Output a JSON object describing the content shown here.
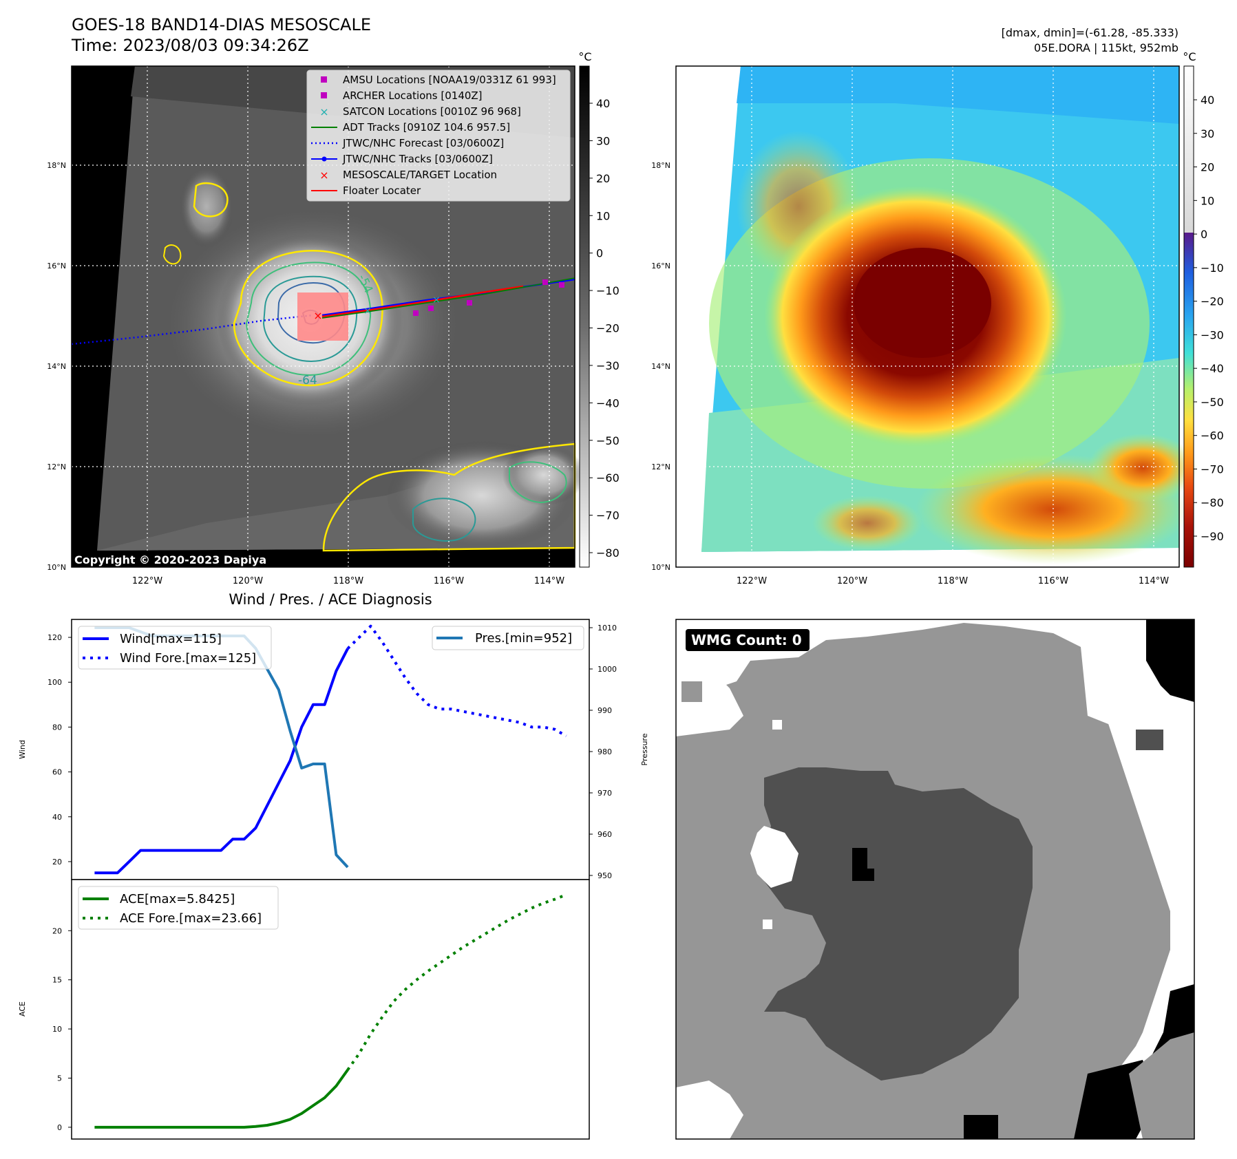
{
  "header": {
    "title": "GOES-18 BAND14-DIAS MESOSCALE",
    "time": "Time: 2023/08/03 09:34:26Z",
    "dminmax": "[dmax, dmin]=(-61.28, -85.333)",
    "storm": "05E.DORA | 115kt, 952mb"
  },
  "copyright": "Copyright © 2020-2023 Dapiya",
  "map": {
    "lat_labels": [
      "18°N",
      "16°N",
      "14°N",
      "12°N",
      "10°N"
    ],
    "lon_labels": [
      "122°W",
      "120°W",
      "118°W",
      "116°W",
      "114°W"
    ],
    "colorbar_unit": "°C"
  },
  "colorbar_gray": {
    "ticks": [
      "40",
      "30",
      "20",
      "10",
      "0",
      "−10",
      "−20",
      "−30",
      "−40",
      "−50",
      "−60",
      "−70",
      "−80"
    ]
  },
  "colorbar_color": {
    "ticks": [
      "40",
      "30",
      "20",
      "10",
      "0",
      "−10",
      "−20",
      "−30",
      "−40",
      "−50",
      "−60",
      "−70",
      "−80",
      "−90"
    ]
  },
  "legend_map": {
    "items": [
      {
        "label": "AMSU Locations [NOAA19/0331Z 61 993]",
        "color": "#c000c0",
        "marker": "square"
      },
      {
        "label": "ARCHER Locations [0140Z]",
        "color": "#c000c0",
        "marker": "square"
      },
      {
        "label": "SATCON Locations [0010Z 96 968]",
        "color": "#20b0b0",
        "marker": "x"
      },
      {
        "label": "ADT Tracks [0910Z 104.6 957.5]",
        "color": "#008000",
        "marker": "line"
      },
      {
        "label": "JTWC/NHC Forecast [03/0600Z]",
        "color": "#0000ff",
        "marker": "dotted"
      },
      {
        "label": "JTWC/NHC Tracks [03/0600Z]",
        "color": "#0000ff",
        "marker": "line-dot"
      },
      {
        "label": "MESOSCALE/TARGET Location",
        "color": "#ff0000",
        "marker": "x"
      },
      {
        "label": "Floater Locater",
        "color": "#ff0000",
        "marker": "line"
      }
    ]
  },
  "contour_labels": [
    "-54",
    "-64"
  ],
  "wmg_label": "WMG Count: 0",
  "diag_title": "Wind / Pres. / ACE Diagnosis",
  "chart_data": [
    {
      "type": "line",
      "ylabel": "Wind",
      "ylabel_right": "Pressure",
      "ylim": [
        12,
        128
      ],
      "ylim_right": [
        949,
        1012
      ],
      "xlim": [
        -1,
        44
      ],
      "yticks": [
        20,
        40,
        60,
        80,
        100,
        120
      ],
      "yticks_right": [
        950,
        960,
        970,
        980,
        990,
        1000,
        1010
      ],
      "legend_left": [
        "Wind[max=115]",
        "Wind Fore.[max=125]"
      ],
      "legend_right": [
        "Pres.[min=952]"
      ],
      "series": [
        {
          "name": "Wind[max=115]",
          "color": "#0000ff",
          "style": "solid",
          "axis": "left",
          "x": [
            1,
            2,
            3,
            4,
            5,
            6,
            7,
            8,
            9,
            10,
            11,
            12,
            13,
            14,
            15,
            16,
            17,
            18,
            19,
            20,
            21,
            22,
            23
          ],
          "values": [
            15,
            15,
            15,
            20,
            25,
            25,
            25,
            25,
            25,
            25,
            25,
            25,
            30,
            30,
            35,
            45,
            55,
            65,
            80,
            90,
            90,
            105,
            115
          ]
        },
        {
          "name": "Wind Fore.[max=125]",
          "color": "#0000ff",
          "style": "dotted",
          "axis": "left",
          "x": [
            23,
            24,
            25,
            26,
            27,
            28,
            29,
            30,
            31,
            32,
            33,
            34,
            35,
            36,
            37,
            38,
            39,
            40,
            41,
            42
          ],
          "values": [
            115,
            120,
            125,
            118,
            110,
            102,
            95,
            90,
            88,
            88,
            87,
            86,
            85,
            84,
            83,
            82,
            80,
            80,
            79,
            76
          ]
        },
        {
          "name": "Pres.[min=952]",
          "color": "#1f77b4",
          "style": "solid",
          "axis": "right",
          "x": [
            1,
            2,
            3,
            4,
            5,
            6,
            7,
            8,
            9,
            10,
            11,
            12,
            13,
            14,
            15,
            16,
            17,
            18,
            19,
            20,
            21,
            22,
            23
          ],
          "values": [
            1010,
            1010,
            1010,
            1010,
            1009,
            1008,
            1008,
            1008,
            1008,
            1008,
            1008,
            1008,
            1008,
            1008,
            1005,
            1000,
            995,
            985,
            976,
            977,
            977,
            955,
            952
          ]
        }
      ]
    },
    {
      "type": "line",
      "ylabel": "ACE",
      "ylim": [
        -1.2,
        25.2
      ],
      "xlim": [
        -1,
        44
      ],
      "yticks": [
        0,
        5,
        10,
        15,
        20
      ],
      "legend_left": [
        "ACE[max=5.8425]",
        "ACE Fore.[max=23.66]"
      ],
      "series": [
        {
          "name": "ACE[max=5.8425]",
          "color": "#008000",
          "style": "solid",
          "x": [
            1,
            3,
            5,
            7,
            9,
            11,
            13,
            14,
            15,
            16,
            17,
            18,
            19,
            20,
            21,
            22,
            23
          ],
          "values": [
            0,
            0,
            0,
            0,
            0,
            0,
            0,
            0,
            0.08,
            0.2,
            0.45,
            0.8,
            1.4,
            2.2,
            3.0,
            4.2,
            5.84
          ]
        },
        {
          "name": "ACE Fore.[max=23.66]",
          "color": "#008000",
          "style": "dotted",
          "x": [
            23,
            24,
            25,
            26,
            27,
            28,
            29,
            30,
            31,
            32,
            33,
            34,
            35,
            36,
            37,
            38,
            39,
            40,
            41,
            42
          ],
          "values": [
            5.84,
            7.5,
            9.5,
            11.2,
            12.8,
            14.0,
            15.0,
            15.9,
            16.7,
            17.5,
            18.3,
            19.0,
            19.7,
            20.4,
            21.1,
            21.7,
            22.3,
            22.8,
            23.2,
            23.66
          ]
        }
      ]
    }
  ]
}
